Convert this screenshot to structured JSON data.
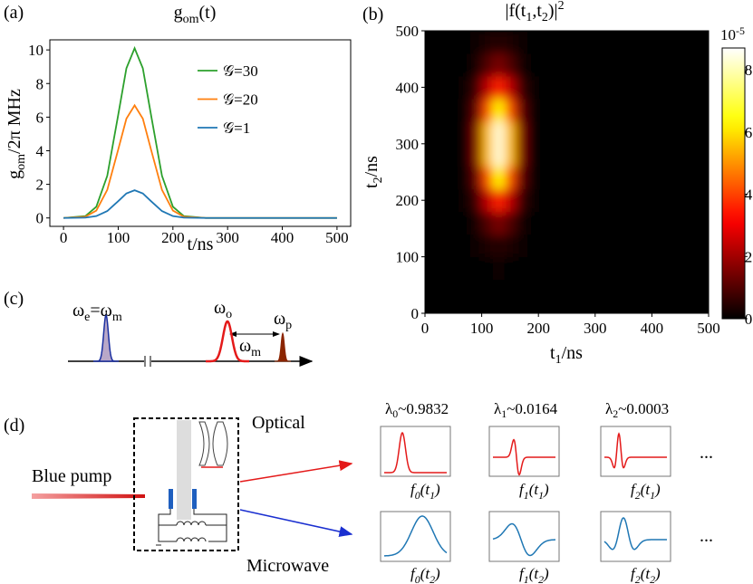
{
  "chart_data": [
    {
      "type": "line",
      "tag": "(a)",
      "title": [
        "g",
        "om",
        "(t)"
      ],
      "y_label": [
        "g",
        "om",
        "/2π MHz"
      ],
      "x_label": "t/ns",
      "x": [
        0,
        40,
        60,
        80,
        100,
        115,
        130,
        145,
        160,
        180,
        200,
        220,
        260,
        500
      ],
      "series": [
        {
          "name": "𝒢=30",
          "color": "#2ca02c",
          "values": [
            0,
            0.11,
            0.67,
            2.51,
            6.13,
            8.91,
            10.1,
            8.91,
            6.13,
            2.51,
            0.67,
            0.11,
            0,
            0
          ]
        },
        {
          "name": "𝒢=20",
          "color": "#ff7f0e",
          "values": [
            0,
            0.07,
            0.44,
            1.67,
            4.07,
            5.91,
            6.7,
            5.91,
            4.07,
            1.67,
            0.44,
            0.07,
            0,
            0
          ]
        },
        {
          "name": "𝒢=1",
          "color": "#1f77b4",
          "values": [
            0,
            0.02,
            0.11,
            0.41,
            1.0,
            1.46,
            1.65,
            1.46,
            1.0,
            0.41,
            0.11,
            0.02,
            0,
            0
          ]
        }
      ],
      "xlim": [
        -25,
        525
      ],
      "ylim": [
        -0.5,
        10.6
      ],
      "xticks": [
        0,
        100,
        200,
        300,
        400,
        500
      ],
      "yticks": [
        0,
        2,
        4,
        6,
        8,
        10
      ],
      "legend": "center"
    },
    {
      "type": "heatmap",
      "tag": "(b)",
      "title": [
        "|f(t",
        "1",
        ",t",
        "2",
        ")|"
      ],
      "title_sup": "2",
      "x_label": [
        "t",
        "1",
        "/ns"
      ],
      "y_label": [
        "t",
        "2",
        "/ns"
      ],
      "x_edges": [
        60,
        80,
        100,
        120,
        140,
        160,
        180,
        200
      ],
      "y_edges": [
        60,
        100,
        140,
        180,
        220,
        260,
        300,
        340,
        380,
        420,
        460,
        500
      ],
      "z": [
        [
          0,
          0.02,
          0.08,
          0.12,
          0.08,
          0.02,
          0
        ],
        [
          0.01,
          0.09,
          0.32,
          0.49,
          0.32,
          0.09,
          0.01
        ],
        [
          0.04,
          0.29,
          1.0,
          1.52,
          1.0,
          0.29,
          0.04
        ],
        [
          0.09,
          0.68,
          2.35,
          3.57,
          2.35,
          0.68,
          0.09
        ],
        [
          0.15,
          1.2,
          4.17,
          6.32,
          4.17,
          1.2,
          0.15
        ],
        [
          0.2,
          1.6,
          5.54,
          8.4,
          5.54,
          1.6,
          0.2
        ],
        [
          0.2,
          1.6,
          5.54,
          8.4,
          5.54,
          1.6,
          0.2
        ],
        [
          0.15,
          1.2,
          4.17,
          6.32,
          4.17,
          1.2,
          0.15
        ],
        [
          0.09,
          0.68,
          2.35,
          3.57,
          2.35,
          0.68,
          0.09
        ],
        [
          0.04,
          0.29,
          1.0,
          1.52,
          1.0,
          0.29,
          0.04
        ],
        [
          0.01,
          0.09,
          0.32,
          0.49,
          0.32,
          0.09,
          0.01
        ]
      ],
      "colormap": "hot",
      "clim": [
        0,
        8.7
      ],
      "cticks": [
        0,
        2,
        4,
        6,
        8
      ],
      "c_scale_label": [
        "10",
        "-5"
      ],
      "xlim": [
        0,
        500
      ],
      "ylim": [
        0,
        500
      ],
      "xticks": [
        0,
        100,
        200,
        300,
        400,
        500
      ],
      "yticks": [
        0,
        100,
        200,
        300,
        400,
        500
      ]
    }
  ],
  "panel_c": {
    "tag": "(c)",
    "labels": [
      [
        "ω",
        "e",
        "=ω",
        "m"
      ],
      [
        "ω",
        "o"
      ],
      [
        "ω",
        "p"
      ],
      [
        "ω",
        "m"
      ]
    ]
  },
  "panel_d": {
    "tag": "(d)",
    "pump": "Blue pump",
    "optical": "Optical",
    "microwave": "Microwave",
    "eigenvalues": [
      [
        "λ",
        "0",
        "~0.9832"
      ],
      [
        "λ",
        "1",
        "~0.0164"
      ],
      [
        "λ",
        "2",
        "~0.0003"
      ]
    ],
    "optical_modes": [
      [
        "f",
        "0",
        "(t",
        "1",
        ")"
      ],
      [
        "f",
        "1",
        "(t",
        "1",
        ")"
      ],
      [
        "f",
        "2",
        "(t",
        "1",
        ")"
      ]
    ],
    "microwave_modes": [
      [
        "f",
        "0",
        "(t",
        "2",
        ")"
      ],
      [
        "f",
        "1",
        "(t",
        "2",
        ")"
      ],
      [
        "f",
        "2",
        "(t",
        "2",
        ")"
      ]
    ],
    "ellipsis": [
      "...",
      "..."
    ]
  }
}
